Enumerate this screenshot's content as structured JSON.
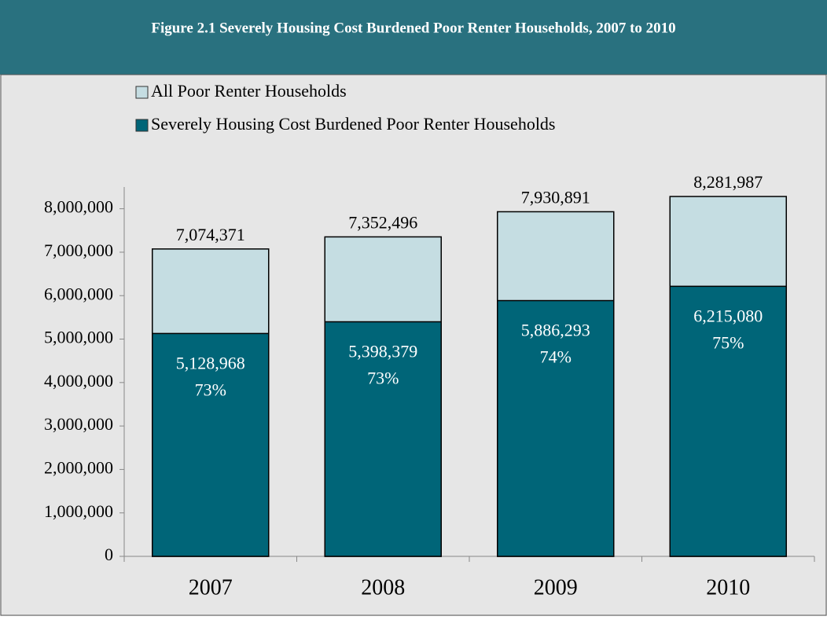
{
  "chart_data": {
    "type": "overlap_bar",
    "title": "Figure 2.1 Severely Housing Cost Burdened Poor Renter Households, 2007 to 2010",
    "categories": [
      "2007",
      "2008",
      "2009",
      "2010"
    ],
    "series": [
      {
        "name": "All Poor Renter Households",
        "color": "#c5dde2",
        "values": [
          7074371,
          7352496,
          7930891,
          8281987
        ],
        "value_labels": [
          "7,074,371",
          "7,352,496",
          "7,930,891",
          "8,281,987"
        ]
      },
      {
        "name": "Severely Housing Cost Burdened Poor Renter Households",
        "color": "#006578",
        "values": [
          5128968,
          5398379,
          5886293,
          6215080
        ],
        "value_labels": [
          "5,128,968",
          "5,398,379",
          "5,886,293",
          "6,215,080"
        ],
        "percents": [
          73,
          73,
          74,
          75
        ],
        "percent_labels": [
          "73%",
          "73%",
          "74%",
          "75%"
        ]
      }
    ],
    "ylim": [
      0,
      8500000
    ],
    "yticks": [
      0,
      {
        "value": 1000000,
        "label": "1,000,000"
      },
      {
        "value": 2000000,
        "label": "2,000,000"
      },
      {
        "value": 3000000,
        "label": "3,000,000"
      },
      {
        "value": 4000000,
        "label": "4,000,000"
      },
      {
        "value": 5000000,
        "label": "5,000,000"
      },
      {
        "value": 6000000,
        "label": "6,000,000"
      },
      {
        "value": 7000000,
        "label": "7,000,000"
      },
      {
        "value": 8000000,
        "label": "8,000,000"
      }
    ]
  }
}
